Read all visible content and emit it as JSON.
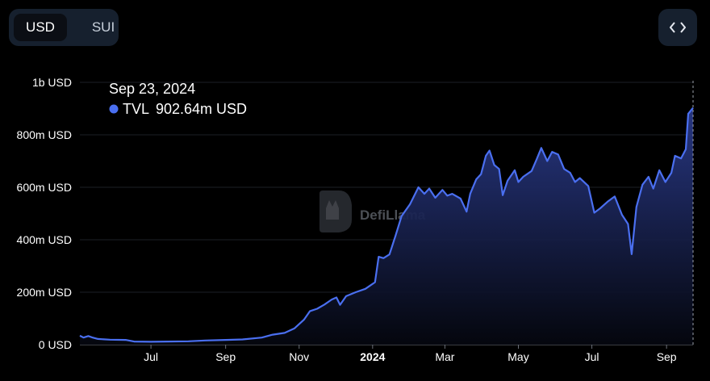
{
  "toggle": {
    "active_label": "USD",
    "inactive_label": "SUI"
  },
  "embed_button": {
    "icon": "code-brackets-icon",
    "label": "<>"
  },
  "watermark": {
    "text": "DefiLlama",
    "icon": "llama-logo-icon"
  },
  "tooltip": {
    "date": "Sep 23, 2024",
    "series_name": "TVL",
    "value": "902.64m USD"
  },
  "colors": {
    "line": "#4a6ff0",
    "dot": "#4a6ff0",
    "grid": "#1c1f26",
    "background": "#000000"
  },
  "chart_data": {
    "type": "area",
    "series": [
      {
        "name": "TVL"
      }
    ],
    "y_unit": "USD",
    "ylim": [
      0,
      1000000000
    ],
    "y_ticks": [
      {
        "value": 0,
        "label": "0 USD"
      },
      {
        "value": 200000000,
        "label": "200m USD"
      },
      {
        "value": 400000000,
        "label": "400m USD"
      },
      {
        "value": 600000000,
        "label": "600m USD"
      },
      {
        "value": 800000000,
        "label": "800m USD"
      },
      {
        "value": 1000000000,
        "label": "1b USD"
      }
    ],
    "x_ticks": [
      {
        "date": "2023-07-01",
        "label": "Jul",
        "bold": false
      },
      {
        "date": "2023-09-01",
        "label": "Sep",
        "bold": false
      },
      {
        "date": "2023-11-01",
        "label": "Nov",
        "bold": false
      },
      {
        "date": "2024-01-01",
        "label": "2024",
        "bold": true
      },
      {
        "date": "2024-03-01",
        "label": "Mar",
        "bold": false
      },
      {
        "date": "2024-05-01",
        "label": "May",
        "bold": false
      },
      {
        "date": "2024-07-01",
        "label": "Jul",
        "bold": false
      },
      {
        "date": "2024-09-01",
        "label": "Sep",
        "bold": false
      }
    ],
    "xlim": [
      "2023-05-03",
      "2024-09-23"
    ],
    "grid": true,
    "points": [
      [
        "2023-05-03",
        34000000
      ],
      [
        "2023-05-06",
        27000000
      ],
      [
        "2023-05-10",
        33000000
      ],
      [
        "2023-05-13",
        28000000
      ],
      [
        "2023-05-18",
        22000000
      ],
      [
        "2023-05-28",
        19000000
      ],
      [
        "2023-06-10",
        18000000
      ],
      [
        "2023-06-17",
        12000000
      ],
      [
        "2023-07-01",
        11000000
      ],
      [
        "2023-07-15",
        12000000
      ],
      [
        "2023-08-01",
        13000000
      ],
      [
        "2023-08-15",
        16000000
      ],
      [
        "2023-09-01",
        18000000
      ],
      [
        "2023-09-15",
        20000000
      ],
      [
        "2023-10-01",
        27000000
      ],
      [
        "2023-10-10",
        38000000
      ],
      [
        "2023-10-20",
        45000000
      ],
      [
        "2023-10-28",
        62000000
      ],
      [
        "2023-11-05",
        95000000
      ],
      [
        "2023-11-10",
        128000000
      ],
      [
        "2023-11-16",
        137000000
      ],
      [
        "2023-11-22",
        153000000
      ],
      [
        "2023-11-28",
        172000000
      ],
      [
        "2023-12-02",
        180000000
      ],
      [
        "2023-12-05",
        152000000
      ],
      [
        "2023-12-10",
        185000000
      ],
      [
        "2023-12-18",
        200000000
      ],
      [
        "2023-12-26",
        213000000
      ],
      [
        "2024-01-03",
        238000000
      ],
      [
        "2024-01-06",
        335000000
      ],
      [
        "2024-01-10",
        330000000
      ],
      [
        "2024-01-15",
        344000000
      ],
      [
        "2024-01-20",
        415000000
      ],
      [
        "2024-01-25",
        490000000
      ],
      [
        "2024-02-01",
        535000000
      ],
      [
        "2024-02-08",
        600000000
      ],
      [
        "2024-02-13",
        575000000
      ],
      [
        "2024-02-17",
        595000000
      ],
      [
        "2024-02-22",
        560000000
      ],
      [
        "2024-02-28",
        590000000
      ],
      [
        "2024-03-03",
        568000000
      ],
      [
        "2024-03-07",
        575000000
      ],
      [
        "2024-03-14",
        557000000
      ],
      [
        "2024-03-19",
        507000000
      ],
      [
        "2024-03-22",
        575000000
      ],
      [
        "2024-03-27",
        630000000
      ],
      [
        "2024-03-31",
        650000000
      ],
      [
        "2024-04-04",
        720000000
      ],
      [
        "2024-04-07",
        740000000
      ],
      [
        "2024-04-11",
        685000000
      ],
      [
        "2024-04-15",
        670000000
      ],
      [
        "2024-04-18",
        570000000
      ],
      [
        "2024-04-22",
        625000000
      ],
      [
        "2024-04-28",
        665000000
      ],
      [
        "2024-05-01",
        620000000
      ],
      [
        "2024-05-05",
        640000000
      ],
      [
        "2024-05-12",
        662000000
      ],
      [
        "2024-05-16",
        705000000
      ],
      [
        "2024-05-20",
        750000000
      ],
      [
        "2024-05-25",
        700000000
      ],
      [
        "2024-05-29",
        735000000
      ],
      [
        "2024-06-03",
        725000000
      ],
      [
        "2024-06-08",
        670000000
      ],
      [
        "2024-06-13",
        655000000
      ],
      [
        "2024-06-17",
        620000000
      ],
      [
        "2024-06-21",
        635000000
      ],
      [
        "2024-06-28",
        605000000
      ],
      [
        "2024-07-03",
        503000000
      ],
      [
        "2024-07-08",
        520000000
      ],
      [
        "2024-07-14",
        545000000
      ],
      [
        "2024-07-20",
        565000000
      ],
      [
        "2024-07-26",
        495000000
      ],
      [
        "2024-07-31",
        460000000
      ],
      [
        "2024-08-03",
        345000000
      ],
      [
        "2024-08-07",
        525000000
      ],
      [
        "2024-08-12",
        610000000
      ],
      [
        "2024-08-17",
        640000000
      ],
      [
        "2024-08-21",
        595000000
      ],
      [
        "2024-08-26",
        665000000
      ],
      [
        "2024-08-31",
        620000000
      ],
      [
        "2024-09-05",
        655000000
      ],
      [
        "2024-09-08",
        720000000
      ],
      [
        "2024-09-13",
        710000000
      ],
      [
        "2024-09-17",
        745000000
      ],
      [
        "2024-09-19",
        880000000
      ],
      [
        "2024-09-23",
        902640000
      ]
    ]
  }
}
